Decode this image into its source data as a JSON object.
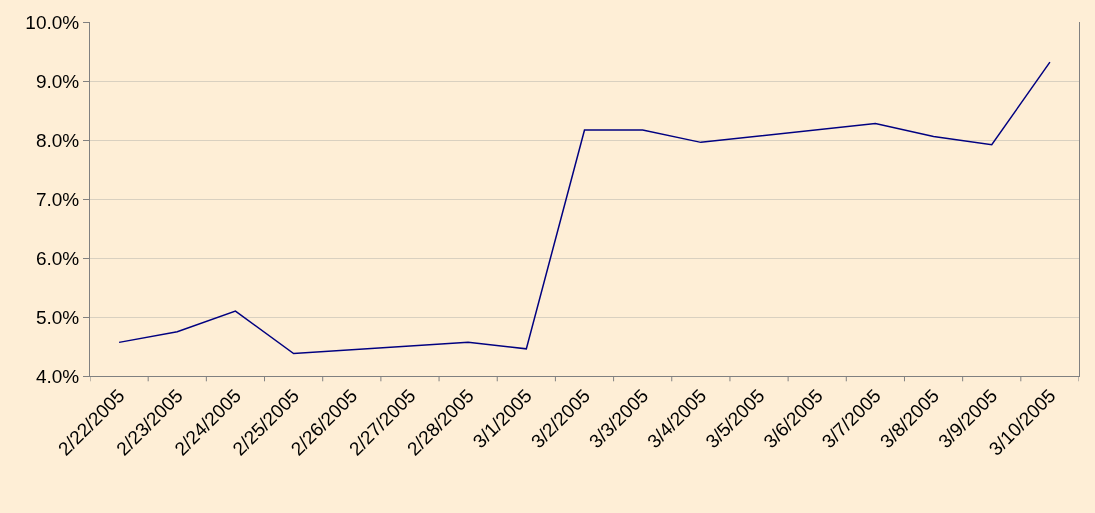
{
  "chart_data": {
    "type": "line",
    "categories": [
      "2/22/2005",
      "2/23/2005",
      "2/24/2005",
      "2/25/2005",
      "2/26/2005",
      "2/27/2005",
      "2/28/2005",
      "3/1/2005",
      "3/2/2005",
      "3/3/2005",
      "3/4/2005",
      "3/5/2005",
      "3/6/2005",
      "3/7/2005",
      "3/8/2005",
      "3/9/2005",
      "3/10/2005"
    ],
    "series": [
      {
        "color": "#000080",
        "values": [
          4.57,
          4.75,
          5.1,
          4.38,
          null,
          null,
          4.57,
          4.46,
          8.17,
          8.17,
          7.96,
          null,
          null,
          8.28,
          8.06,
          7.92,
          9.32
        ]
      }
    ],
    "ylim": [
      4,
      10
    ],
    "yticks": [
      {
        "value": 4,
        "label": "4.0%"
      },
      {
        "value": 5,
        "label": "5.0%"
      },
      {
        "value": 6,
        "label": "6.0%"
      },
      {
        "value": 7,
        "label": "7.0%"
      },
      {
        "value": 8,
        "label": "8.0%"
      },
      {
        "value": 9,
        "label": "9.0%"
      },
      {
        "value": 10,
        "label": "10.0%"
      }
    ],
    "grid": "y",
    "legend": false,
    "marker": "none",
    "line_style": "solid"
  }
}
